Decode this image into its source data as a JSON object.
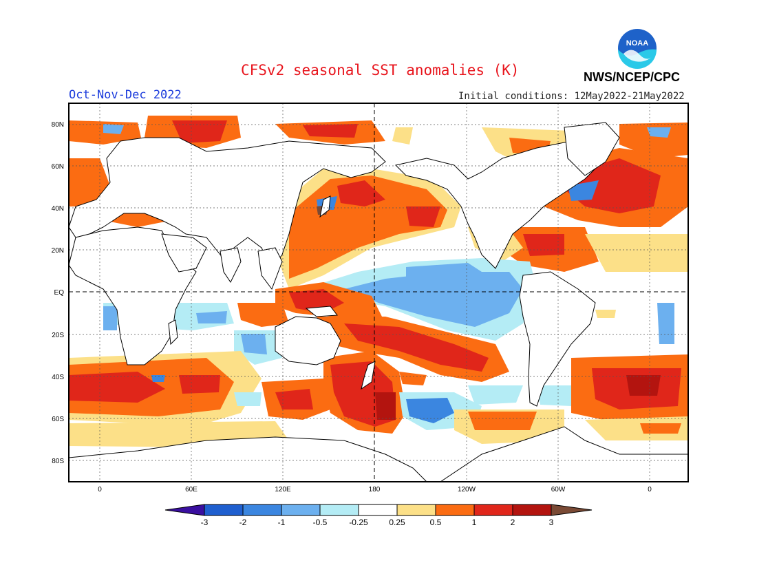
{
  "header": {
    "title": "CFSv2 seasonal SST anomalies (K)",
    "organization": "NWS/NCEP/CPC",
    "logo_text": "NOAA",
    "season": "Oct-Nov-Dec 2022",
    "initial_conditions": "Initial conditions: 12May2022-21May2022"
  },
  "map": {
    "lat_ticks": [
      "80N",
      "60N",
      "40N",
      "20N",
      "EQ",
      "20S",
      "40S",
      "60S",
      "80S"
    ],
    "lon_ticks": [
      "0",
      "60E",
      "120E",
      "180",
      "120W",
      "60W",
      "0"
    ]
  },
  "legend": {
    "tick_labels": [
      "-3",
      "-2",
      "-1",
      "-0.5",
      "-0.25",
      "0.25",
      "0.5",
      "1",
      "2",
      "3"
    ],
    "colors": {
      "below_-3": "#3a0fa0",
      "-3_-2": "#1f5fcf",
      "-2_-1": "#3b86e0",
      "-1_-0.5": "#6cb0ef",
      "-0.5_-0.25": "#b4ecf5",
      "-0.25_0.25": "#ffffff",
      "0.25_0.5": "#fce088",
      "0.5_1": "#fb6c12",
      "1_2": "#e0261a",
      "2_3": "#b3140f",
      "above_3": "#7a4a35"
    }
  }
}
